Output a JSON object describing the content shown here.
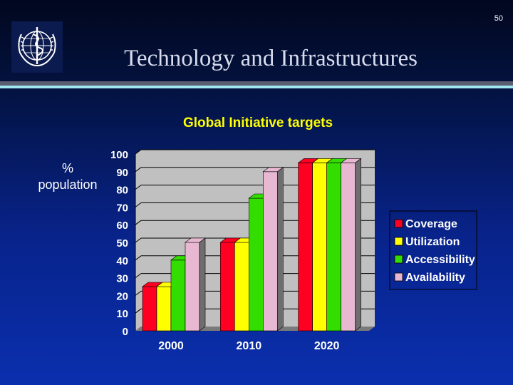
{
  "slide": {
    "number": "50",
    "title": "Technology and Infrastructures"
  },
  "logo": {
    "name": "who-emblem-icon"
  },
  "colors": {
    "title_text": "#d8dcee",
    "chart_title": "#ffff00",
    "wall": "#c0c0c0",
    "floor": "#7a7a7a",
    "coverage": "#ff0022",
    "utilization": "#ffff00",
    "accessibility": "#33dd00",
    "availability": "#e8b8d2"
  },
  "chart_data": {
    "type": "bar",
    "title": "Global Initiative targets",
    "ylabel": "% population",
    "categories": [
      "2000",
      "2010",
      "2020"
    ],
    "ylim": [
      0,
      100
    ],
    "yticks": [
      0,
      10,
      20,
      30,
      40,
      50,
      60,
      70,
      80,
      90,
      100
    ],
    "grid": true,
    "legend_position": "right",
    "series": [
      {
        "name": "Coverage",
        "color": "#ff0022",
        "values": [
          25,
          50,
          95
        ]
      },
      {
        "name": "Utilization",
        "color": "#ffff00",
        "values": [
          25,
          50,
          95
        ]
      },
      {
        "name": "Accessibility",
        "color": "#33dd00",
        "values": [
          40,
          75,
          95
        ]
      },
      {
        "name": "Availability",
        "color": "#e8b8d2",
        "values": [
          50,
          90,
          95
        ]
      }
    ]
  }
}
